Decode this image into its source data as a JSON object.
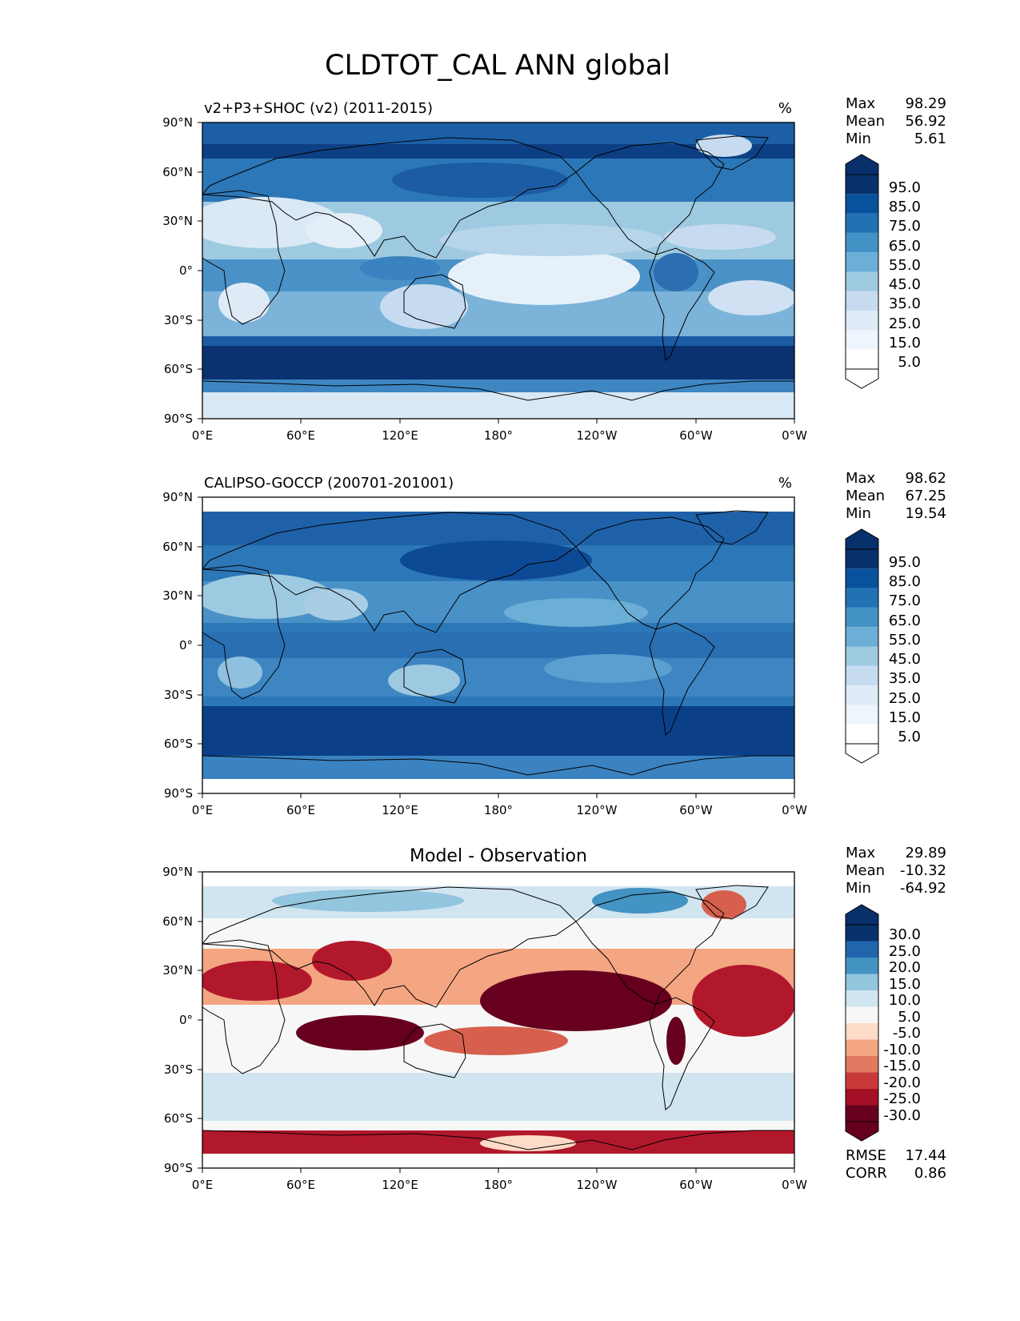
{
  "figure_title": "CLDTOT_CAL ANN global",
  "chart_data": [
    {
      "type": "heatmap",
      "title": "v2+P3+SHOC (v2) (2011-2015)",
      "units": "%",
      "x_ticks": [
        "0°E",
        "60°E",
        "120°E",
        "180°",
        "120°W",
        "60°W",
        "0°W"
      ],
      "y_ticks": [
        "90°N",
        "60°N",
        "30°N",
        "0°",
        "30°S",
        "60°S",
        "90°S"
      ],
      "xlim": [
        0,
        360
      ],
      "ylim": [
        -90,
        90
      ],
      "stats": [
        {
          "label": "Max",
          "value": "98.29"
        },
        {
          "label": "Mean",
          "value": "56.92"
        },
        {
          "label": "Min",
          "value": "5.61"
        }
      ],
      "colorbar": {
        "palette": "blues",
        "levels": [
          "95.0",
          "85.0",
          "75.0",
          "65.0",
          "55.0",
          "45.0",
          "35.0",
          "25.0",
          "15.0",
          "5.0"
        ]
      }
    },
    {
      "type": "heatmap",
      "title": "CALIPSO-GOCCP (200701-201001)",
      "units": "%",
      "x_ticks": [
        "0°E",
        "60°E",
        "120°E",
        "180°",
        "120°W",
        "60°W",
        "0°W"
      ],
      "y_ticks": [
        "90°N",
        "60°N",
        "30°N",
        "0°",
        "30°S",
        "60°S",
        "90°S"
      ],
      "xlim": [
        0,
        360
      ],
      "ylim": [
        -90,
        90
      ],
      "data_lat_range": [
        -82,
        82
      ],
      "stats": [
        {
          "label": "Max",
          "value": "98.62"
        },
        {
          "label": "Mean",
          "value": "67.25"
        },
        {
          "label": "Min",
          "value": "19.54"
        }
      ],
      "colorbar": {
        "palette": "blues",
        "levels": [
          "95.0",
          "85.0",
          "75.0",
          "65.0",
          "55.0",
          "45.0",
          "35.0",
          "25.0",
          "15.0",
          "5.0"
        ]
      }
    },
    {
      "type": "heatmap",
      "title": "Model - Observation",
      "units": "",
      "x_ticks": [
        "0°E",
        "60°E",
        "120°E",
        "180°",
        "120°W",
        "60°W",
        "0°W"
      ],
      "y_ticks": [
        "90°N",
        "60°N",
        "30°N",
        "0°",
        "30°S",
        "60°S",
        "90°S"
      ],
      "xlim": [
        0,
        360
      ],
      "ylim": [
        -90,
        90
      ],
      "data_lat_range": [
        -82,
        82
      ],
      "stats": [
        {
          "label": "Max",
          "value": "29.89"
        },
        {
          "label": "Mean",
          "value": "-10.32"
        },
        {
          "label": "Min",
          "value": "-64.92"
        }
      ],
      "colorbar": {
        "palette": "diverging",
        "levels": [
          "30.0",
          "25.0",
          "20.0",
          "15.0",
          "10.0",
          "5.0",
          "-5.0",
          "-10.0",
          "-15.0",
          "-20.0",
          "-25.0",
          "-30.0"
        ]
      },
      "metrics": [
        {
          "label": "RMSE",
          "value": "17.44"
        },
        {
          "label": "CORR",
          "value": "0.86"
        }
      ]
    }
  ]
}
